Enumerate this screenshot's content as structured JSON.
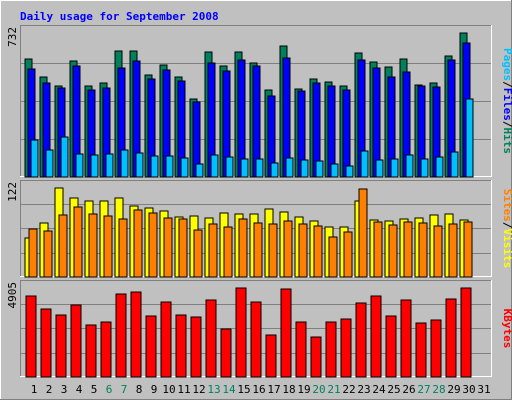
{
  "title": "Daily usage for September 2008",
  "colors": {
    "background": "#c0c0c0",
    "title": "#0000ff",
    "hits": "#00805c",
    "files": "#0000ff",
    "pages": "#00c0ff",
    "visits": "#ffff00",
    "sites": "#ff8000",
    "kbytes": "#ff0000",
    "weekend_label": "#00805c"
  },
  "chart_data": [
    {
      "type": "bar",
      "panel": "top",
      "ymax_label": "732",
      "ylim": [
        0,
        732
      ],
      "grid": true,
      "legend_labels": [
        "Pages",
        "/",
        "Files",
        "/",
        "Hits"
      ],
      "categories": [
        "1",
        "2",
        "3",
        "4",
        "5",
        "6",
        "7",
        "8",
        "9",
        "10",
        "11",
        "12",
        "13",
        "14",
        "15",
        "16",
        "17",
        "18",
        "19",
        "20",
        "21",
        "22",
        "23",
        "24",
        "25",
        "26",
        "27",
        "28",
        "29",
        "30",
        "31"
      ],
      "series": [
        {
          "name": "Hits",
          "values": [
            601,
            510,
            463,
            590,
            462,
            478,
            640,
            640,
            520,
            567,
            507,
            396,
            634,
            563,
            635,
            580,
            442,
            668,
            447,
            500,
            481,
            462,
            630,
            586,
            557,
            600,
            468,
            476,
            617,
            732,
            0
          ]
        },
        {
          "name": "Files",
          "values": [
            551,
            480,
            450,
            562,
            440,
            452,
            555,
            592,
            500,
            543,
            487,
            382,
            578,
            538,
            596,
            565,
            414,
            603,
            437,
            480,
            462,
            441,
            596,
            553,
            510,
            536,
            462,
            460,
            595,
            682,
            0
          ]
        },
        {
          "name": "Pages",
          "values": [
            188,
            135,
            201,
            117,
            112,
            117,
            138,
            123,
            109,
            108,
            99,
            65,
            110,
            102,
            94,
            94,
            72,
            96,
            85,
            83,
            64,
            58,
            134,
            86,
            94,
            113,
            94,
            103,
            127,
            398,
            0
          ]
        }
      ]
    },
    {
      "type": "bar",
      "panel": "middle",
      "ymax_label": "122",
      "ylim": [
        0,
        122
      ],
      "grid": true,
      "legend_labels": [
        "Sites",
        "/",
        "Visits"
      ],
      "categories": [
        "1",
        "2",
        "3",
        "4",
        "5",
        "6",
        "7",
        "8",
        "9",
        "10",
        "11",
        "12",
        "13",
        "14",
        "15",
        "16",
        "17",
        "18",
        "19",
        "20",
        "21",
        "22",
        "23",
        "24",
        "25",
        "26",
        "27",
        "28",
        "29",
        "30",
        "31"
      ],
      "series": [
        {
          "name": "Visits",
          "values": [
            54,
            74,
            122,
            108,
            104,
            104,
            108,
            97,
            94,
            91,
            82,
            84,
            81,
            88,
            87,
            87,
            93,
            89,
            82,
            77,
            68,
            69,
            104,
            78,
            77,
            79,
            81,
            85,
            87,
            78,
            0
          ]
        },
        {
          "name": "Sites",
          "values": [
            66,
            63,
            85,
            96,
            86,
            84,
            80,
            92,
            88,
            81,
            80,
            65,
            72,
            69,
            79,
            74,
            73,
            77,
            73,
            70,
            55,
            62,
            121,
            75,
            71,
            75,
            74,
            70,
            73,
            76,
            0
          ]
        }
      ]
    },
    {
      "type": "bar",
      "panel": "bottom",
      "ymax_label": "4905",
      "ylim": [
        0,
        4905
      ],
      "grid": true,
      "legend_labels": [
        "KBytes"
      ],
      "categories": [
        "1",
        "2",
        "3",
        "4",
        "5",
        "6",
        "7",
        "8",
        "9",
        "10",
        "11",
        "12",
        "13",
        "14",
        "15",
        "16",
        "17",
        "18",
        "19",
        "20",
        "21",
        "22",
        "23",
        "24",
        "25",
        "26",
        "27",
        "28",
        "29",
        "30",
        "31"
      ],
      "series": [
        {
          "name": "KBytes",
          "values": [
            4490,
            3747,
            3413,
            3970,
            2893,
            3025,
            4593,
            4678,
            3345,
            4140,
            3410,
            3315,
            4220,
            2629,
            4905,
            4160,
            2298,
            4835,
            3049,
            2225,
            3025,
            3180,
            4095,
            4463,
            3385,
            4268,
            2980,
            3120,
            4284,
            4905,
            0
          ]
        }
      ]
    }
  ],
  "x_labels": [
    {
      "text": "1",
      "weekend": false
    },
    {
      "text": "2",
      "weekend": false
    },
    {
      "text": "3",
      "weekend": false
    },
    {
      "text": "4",
      "weekend": false
    },
    {
      "text": "5",
      "weekend": false
    },
    {
      "text": "6",
      "weekend": true
    },
    {
      "text": "7",
      "weekend": true
    },
    {
      "text": "8",
      "weekend": false
    },
    {
      "text": "9",
      "weekend": false
    },
    {
      "text": "10",
      "weekend": false
    },
    {
      "text": "11",
      "weekend": false
    },
    {
      "text": "12",
      "weekend": false
    },
    {
      "text": "13",
      "weekend": true
    },
    {
      "text": "14",
      "weekend": true
    },
    {
      "text": "15",
      "weekend": false
    },
    {
      "text": "16",
      "weekend": false
    },
    {
      "text": "17",
      "weekend": false
    },
    {
      "text": "18",
      "weekend": false
    },
    {
      "text": "19",
      "weekend": false
    },
    {
      "text": "20",
      "weekend": true
    },
    {
      "text": "21",
      "weekend": true
    },
    {
      "text": "22",
      "weekend": false
    },
    {
      "text": "23",
      "weekend": false
    },
    {
      "text": "24",
      "weekend": false
    },
    {
      "text": "25",
      "weekend": false
    },
    {
      "text": "26",
      "weekend": false
    },
    {
      "text": "27",
      "weekend": true
    },
    {
      "text": "28",
      "weekend": true
    },
    {
      "text": "29",
      "weekend": false
    },
    {
      "text": "30",
      "weekend": false
    },
    {
      "text": "31",
      "weekend": false
    }
  ]
}
